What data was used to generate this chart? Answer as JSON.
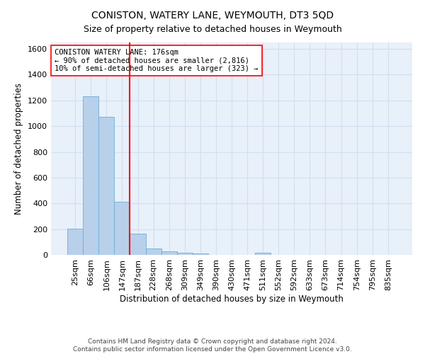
{
  "title": "CONISTON, WATERY LANE, WEYMOUTH, DT3 5QD",
  "subtitle": "Size of property relative to detached houses in Weymouth",
  "xlabel": "Distribution of detached houses by size in Weymouth",
  "ylabel": "Number of detached properties",
  "categories": [
    "25sqm",
    "66sqm",
    "106sqm",
    "147sqm",
    "187sqm",
    "228sqm",
    "268sqm",
    "309sqm",
    "349sqm",
    "390sqm",
    "430sqm",
    "471sqm",
    "511sqm",
    "552sqm",
    "592sqm",
    "633sqm",
    "673sqm",
    "714sqm",
    "754sqm",
    "795sqm",
    "835sqm"
  ],
  "values": [
    205,
    1230,
    1070,
    410,
    165,
    48,
    28,
    18,
    13,
    0,
    0,
    0,
    15,
    0,
    0,
    0,
    0,
    0,
    0,
    0,
    0
  ],
  "bar_color": "#b8d0ea",
  "bar_edge_color": "#6aaed6",
  "vline_color": "red",
  "vline_index": 3.5,
  "annotation_text": "CONISTON WATERY LANE: 176sqm\n← 90% of detached houses are smaller (2,816)\n10% of semi-detached houses are larger (323) →",
  "annotation_box_color": "white",
  "annotation_box_edge": "red",
  "ylim": [
    0,
    1650
  ],
  "yticks": [
    0,
    200,
    400,
    600,
    800,
    1000,
    1200,
    1400,
    1600
  ],
  "grid_color": "#d0dff0",
  "bg_color": "#e8f0fa",
  "footer": "Contains HM Land Registry data © Crown copyright and database right 2024.\nContains public sector information licensed under the Open Government Licence v3.0.",
  "title_fontsize": 10,
  "subtitle_fontsize": 9,
  "xlabel_fontsize": 8.5,
  "ylabel_fontsize": 8.5,
  "tick_fontsize": 8,
  "annotation_fontsize": 7.5
}
